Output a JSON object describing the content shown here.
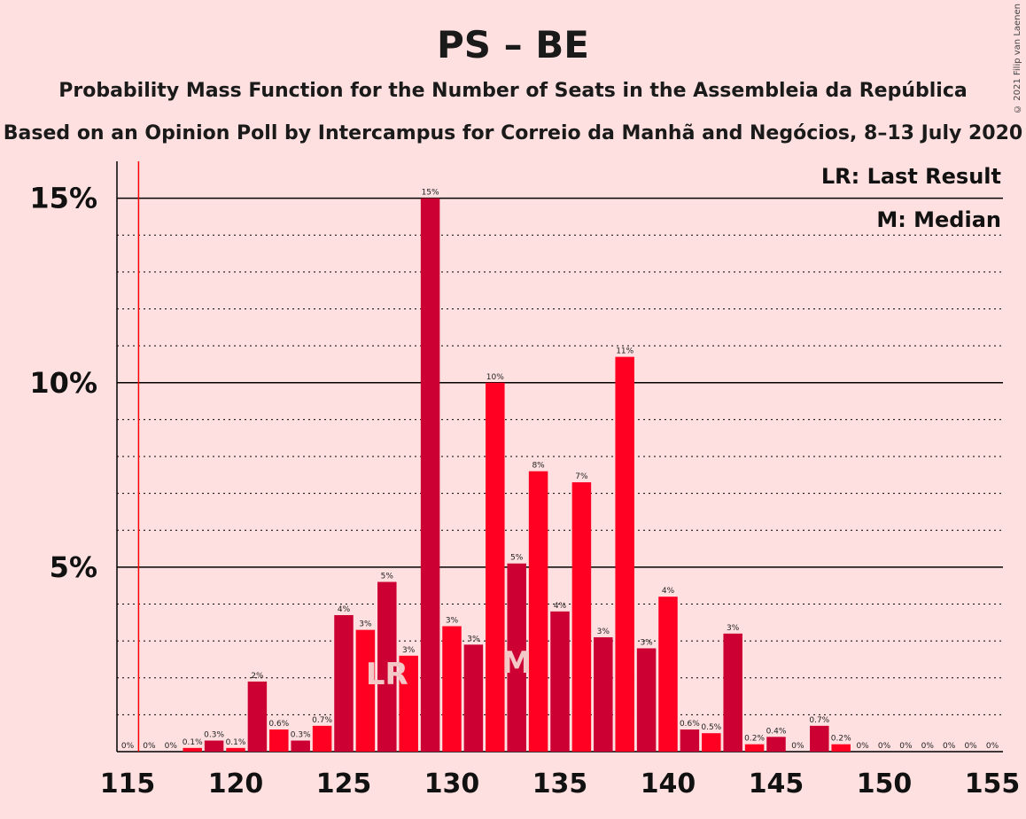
{
  "chart_data": {
    "type": "bar",
    "title": "PS – BE",
    "subtitle": "Probability Mass Function for the Number of Seats in the Assembleia da República",
    "subtitle2": "Based on an Opinion Poll by Intercampus for Correio da Manhã and Negócios, 8–13 July 2020",
    "copyright": "© 2021 Filip van Laenen",
    "legend": [
      "LR: Last Result",
      "M: Median"
    ],
    "x": [
      115,
      116,
      117,
      118,
      119,
      120,
      121,
      122,
      123,
      124,
      125,
      126,
      127,
      128,
      129,
      130,
      131,
      132,
      133,
      134,
      135,
      136,
      137,
      138,
      139,
      140,
      141,
      142,
      143,
      144,
      145,
      146,
      147,
      148,
      149,
      150,
      151,
      152,
      153,
      154,
      155
    ],
    "values": [
      0,
      0,
      0,
      0.1,
      0.3,
      0.1,
      1.9,
      0.6,
      0.3,
      0.7,
      3.7,
      3.3,
      4.6,
      2.6,
      15.0,
      3.4,
      2.9,
      10.0,
      5.1,
      7.6,
      3.8,
      7.3,
      3.1,
      10.7,
      2.8,
      4.2,
      0.6,
      0.5,
      3.2,
      0.2,
      0.4,
      0,
      0.7,
      0.2,
      0,
      0,
      0,
      0,
      0,
      0,
      0
    ],
    "labels": [
      "0%",
      "0%",
      "0%",
      "0.1%",
      "0.3%",
      "0.1%",
      "2%",
      "0.6%",
      "0.3%",
      "0.7%",
      "4%",
      "3%",
      "5%",
      "3%",
      "15%",
      "3%",
      "3%",
      "10%",
      "5%",
      "8%",
      "4%",
      "7%",
      "3%",
      "11%",
      "3%",
      "4%",
      "0.6%",
      "0.5%",
      "3%",
      "0.2%",
      "0.4%",
      "0%",
      "0.7%",
      "0.2%",
      "0%",
      "0%",
      "0%",
      "0%",
      "0%",
      "0%",
      "0%"
    ],
    "last_result": 127,
    "last_result_label": "LR",
    "median": 133,
    "median_label": "M",
    "majority_line_x": 116,
    "x_ticks": [
      115,
      120,
      125,
      130,
      135,
      140,
      145,
      150,
      155
    ],
    "y_ticks": [
      {
        "value": 5,
        "label": "5%"
      },
      {
        "value": 10,
        "label": "10%"
      },
      {
        "value": 15,
        "label": "15%"
      }
    ],
    "ylim": [
      0,
      16
    ],
    "xlabel": "",
    "ylabel": "",
    "grid": true,
    "colors": {
      "bar_dark": "#cc0033",
      "bar_light": "#ff0022",
      "majority_line": "#ff0000",
      "background": "#ffe0e0"
    }
  }
}
